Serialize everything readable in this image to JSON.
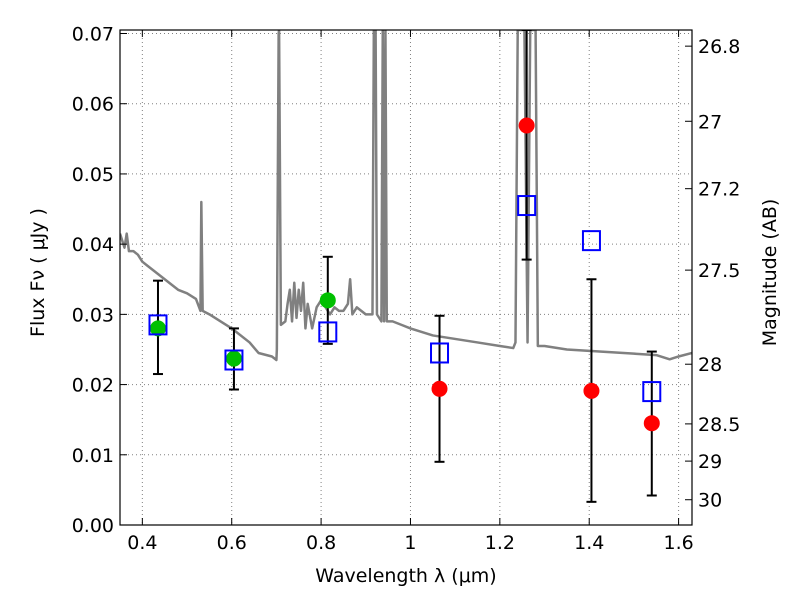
{
  "chart_data": {
    "type": "scatter",
    "xlabel": "Wavelength  λ (μm)",
    "ylabel": "Flux  Fν  ( μJy )",
    "ylabel_right": "Magnitude (AB)",
    "xlim": [
      0.35,
      1.63
    ],
    "ylim": [
      0.0,
      0.0705
    ],
    "grid": true,
    "x_ticks": [
      0.4,
      0.6,
      0.8,
      1.0,
      1.2,
      1.4,
      1.6
    ],
    "x_tick_labels": [
      "0.4",
      "0.6",
      "0.8",
      "1",
      "1.2",
      "1.4",
      "1.6"
    ],
    "y_ticks": [
      0.0,
      0.01,
      0.02,
      0.03,
      0.04,
      0.05,
      0.06,
      0.07
    ],
    "y_tick_labels": [
      "0.00",
      "0.01",
      "0.02",
      "0.03",
      "0.04",
      "0.05",
      "0.06",
      "0.07"
    ],
    "right_ticks": [
      {
        "label": "26.8",
        "flux": 0.0682
      },
      {
        "label": "27",
        "flux": 0.0575
      },
      {
        "label": "27.2",
        "flux": 0.0479
      },
      {
        "label": "27.5",
        "flux": 0.0363
      },
      {
        "label": "28",
        "flux": 0.0229
      },
      {
        "label": "28.5",
        "flux": 0.0144
      },
      {
        "label": "29",
        "flux": 0.0091
      },
      {
        "label": "30",
        "flux": 0.0036
      }
    ],
    "colors": {
      "spectrum": "#808080",
      "green_points": "#00c000",
      "red_points": "#ff0000",
      "model_squares": "#0000ff",
      "errorbars": "#000000",
      "grid": "#808080"
    },
    "series": [
      {
        "kind": "line",
        "color_key": "spectrum",
        "points": [
          [
            0.35,
            0.0415
          ],
          [
            0.36,
            0.0395
          ],
          [
            0.365,
            0.0415
          ],
          [
            0.37,
            0.039
          ],
          [
            0.38,
            0.039
          ],
          [
            0.39,
            0.0385
          ],
          [
            0.4,
            0.0375
          ],
          [
            0.41,
            0.037
          ],
          [
            0.42,
            0.0365
          ],
          [
            0.44,
            0.0355
          ],
          [
            0.46,
            0.0345
          ],
          [
            0.48,
            0.0335
          ],
          [
            0.5,
            0.033
          ],
          [
            0.52,
            0.0322
          ],
          [
            0.53,
            0.0305
          ],
          [
            0.532,
            0.046
          ],
          [
            0.535,
            0.0305
          ],
          [
            0.55,
            0.03
          ],
          [
            0.6,
            0.028
          ],
          [
            0.64,
            0.026
          ],
          [
            0.66,
            0.0245
          ],
          [
            0.69,
            0.024
          ],
          [
            0.7,
            0.0235
          ],
          [
            0.701,
            0.025
          ],
          [
            0.705,
            0.07
          ],
          [
            0.706,
            0.0705
          ],
          [
            0.71,
            0.0285
          ],
          [
            0.72,
            0.029
          ],
          [
            0.725,
            0.0315
          ],
          [
            0.73,
            0.0335
          ],
          [
            0.735,
            0.029
          ],
          [
            0.74,
            0.0345
          ],
          [
            0.745,
            0.0295
          ],
          [
            0.75,
            0.0335
          ],
          [
            0.755,
            0.0305
          ],
          [
            0.76,
            0.0345
          ],
          [
            0.765,
            0.028
          ],
          [
            0.77,
            0.0315
          ],
          [
            0.78,
            0.028
          ],
          [
            0.79,
            0.031
          ],
          [
            0.8,
            0.032
          ],
          [
            0.81,
            0.031
          ],
          [
            0.82,
            0.03
          ],
          [
            0.83,
            0.031
          ],
          [
            0.84,
            0.0305
          ],
          [
            0.85,
            0.0305
          ],
          [
            0.86,
            0.0315
          ],
          [
            0.865,
            0.035
          ],
          [
            0.87,
            0.03
          ],
          [
            0.88,
            0.031
          ],
          [
            0.9,
            0.03
          ],
          [
            0.915,
            0.03
          ],
          [
            0.918,
            0.0705
          ],
          [
            0.922,
            0.0705
          ],
          [
            0.925,
            0.03
          ],
          [
            0.935,
            0.029
          ],
          [
            0.938,
            0.0705
          ],
          [
            0.941,
            0.029
          ],
          [
            0.944,
            0.0705
          ],
          [
            0.947,
            0.029
          ],
          [
            0.96,
            0.029
          ],
          [
            0.98,
            0.0285
          ],
          [
            1.0,
            0.028
          ],
          [
            1.05,
            0.027
          ],
          [
            1.1,
            0.0265
          ],
          [
            1.15,
            0.026
          ],
          [
            1.2,
            0.0255
          ],
          [
            1.23,
            0.0252
          ],
          [
            1.235,
            0.026
          ],
          [
            1.24,
            0.0705
          ],
          [
            1.255,
            0.0705
          ],
          [
            1.262,
            0.026
          ],
          [
            1.268,
            0.0705
          ],
          [
            1.28,
            0.0705
          ],
          [
            1.285,
            0.0255
          ],
          [
            1.3,
            0.0255
          ],
          [
            1.35,
            0.025
          ],
          [
            1.4,
            0.0248
          ],
          [
            1.45,
            0.0246
          ],
          [
            1.5,
            0.0244
          ],
          [
            1.55,
            0.0242
          ],
          [
            1.58,
            0.0236
          ],
          [
            1.6,
            0.024
          ],
          [
            1.63,
            0.0245
          ]
        ]
      },
      {
        "kind": "points",
        "color_key": "green_points",
        "points": [
          {
            "x": 0.435,
            "y": 0.028,
            "yerr_low": 0.0215,
            "yerr_high": 0.0348
          },
          {
            "x": 0.605,
            "y": 0.0237,
            "yerr_low": 0.0193,
            "yerr_high": 0.028
          },
          {
            "x": 0.815,
            "y": 0.032,
            "yerr_low": 0.0258,
            "yerr_high": 0.0382
          }
        ]
      },
      {
        "kind": "points",
        "color_key": "red_points",
        "points": [
          {
            "x": 1.065,
            "y": 0.0194,
            "yerr_low": 0.009,
            "yerr_high": 0.0298
          },
          {
            "x": 1.26,
            "y": 0.0569,
            "yerr_low": 0.0378,
            "yerr_high": 0.0705
          },
          {
            "x": 1.405,
            "y": 0.0191,
            "yerr_low": 0.0033,
            "yerr_high": 0.035
          },
          {
            "x": 1.54,
            "y": 0.0145,
            "yerr_low": 0.0042,
            "yerr_high": 0.0247
          }
        ]
      },
      {
        "kind": "squares",
        "color_key": "model_squares",
        "points": [
          {
            "x": 0.435,
            "y": 0.0285
          },
          {
            "x": 0.605,
            "y": 0.0235
          },
          {
            "x": 0.815,
            "y": 0.0275
          },
          {
            "x": 1.065,
            "y": 0.0245
          },
          {
            "x": 1.26,
            "y": 0.0455
          },
          {
            "x": 1.405,
            "y": 0.0405
          },
          {
            "x": 1.54,
            "y": 0.019
          }
        ]
      }
    ]
  }
}
